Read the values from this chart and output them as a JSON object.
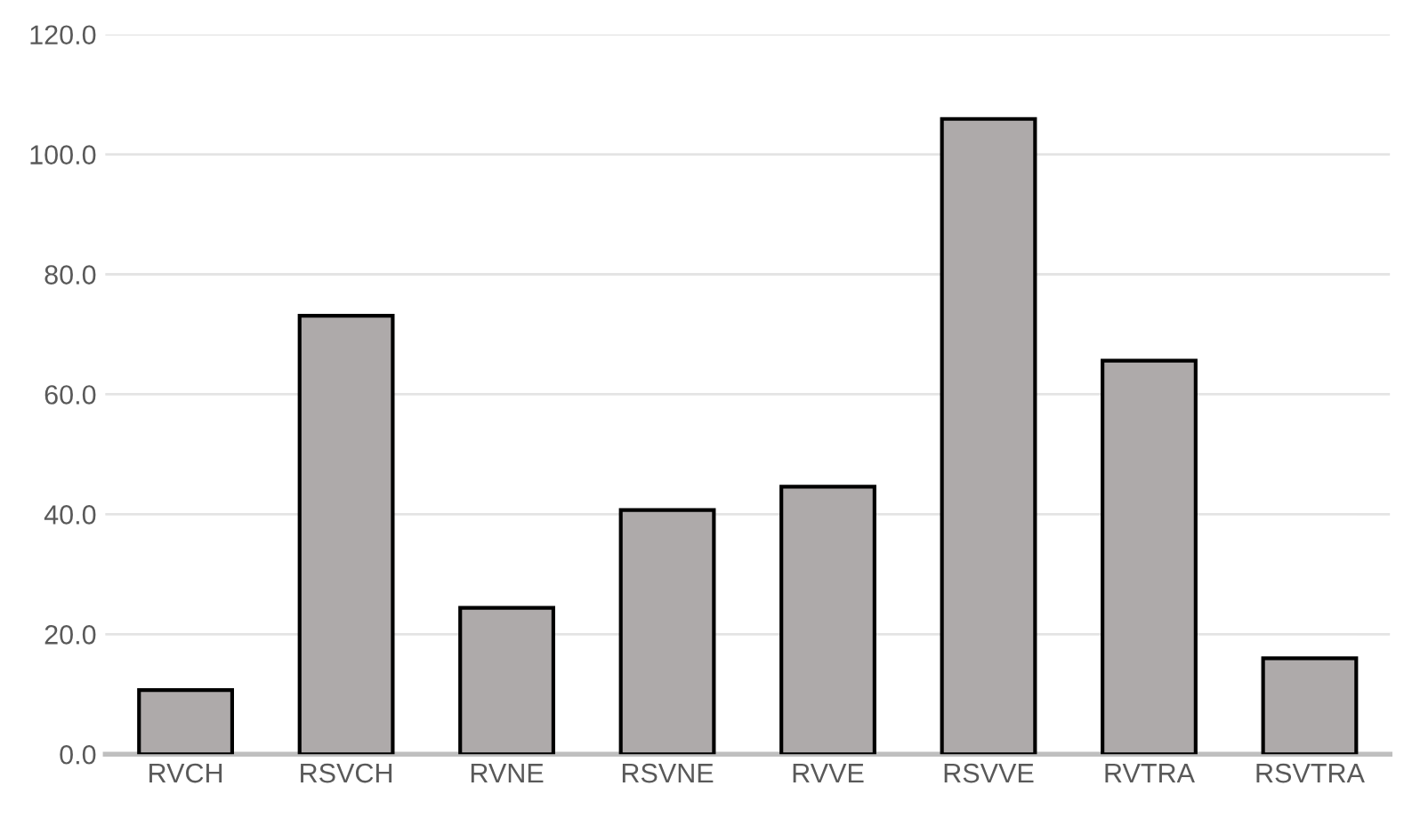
{
  "chart_data": {
    "type": "bar",
    "categories": [
      "RVCH",
      "RSVCH",
      "RVNE",
      "RSVNE",
      "RVVE",
      "RSVVE",
      "RVTRA",
      "RSVTRA"
    ],
    "values": [
      10.7,
      73.1,
      24.4,
      40.7,
      44.6,
      105.9,
      65.6,
      16.0
    ],
    "color": "#aeaaaa",
    "ylim": [
      0,
      120
    ],
    "yticks": [
      {
        "value": 0,
        "label": "0.0"
      },
      {
        "value": 20,
        "label": "20.0"
      },
      {
        "value": 40,
        "label": "40.0"
      },
      {
        "value": 60,
        "label": "60.0"
      },
      {
        "value": 80,
        "label": "80.0"
      },
      {
        "value": 100,
        "label": "100.0"
      },
      {
        "value": 120,
        "label": "120.0"
      }
    ],
    "grid": "y"
  }
}
